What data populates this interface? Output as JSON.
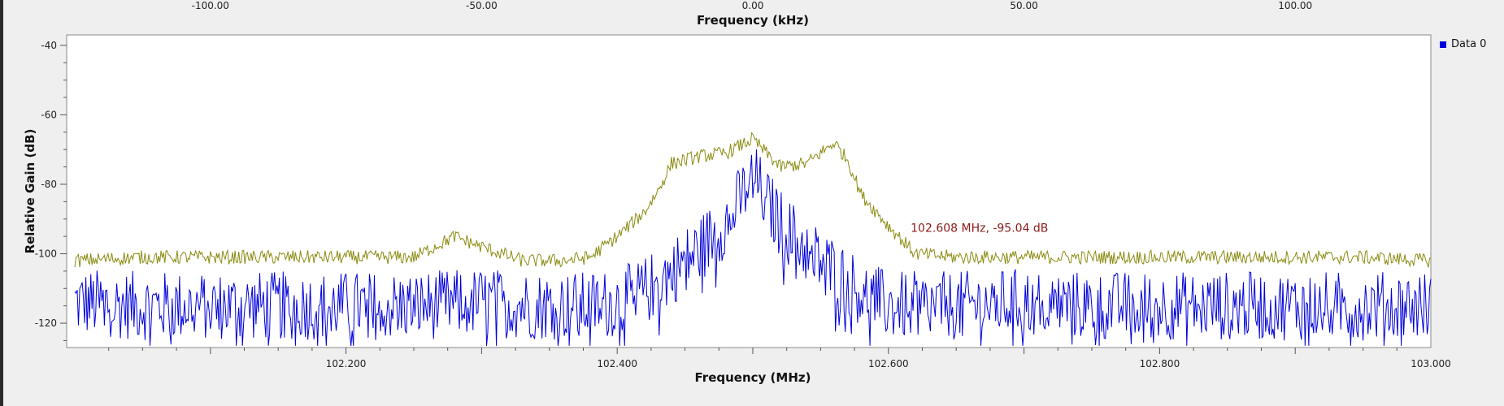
{
  "colors": {
    "background": "#efefef",
    "plot_bg": "#ffffff",
    "live_trace": "#0000dd",
    "max_hold_trace": "#8a8a10",
    "annotation": "#8b1a1a"
  },
  "legend": {
    "label": "Data 0"
  },
  "annotation": {
    "text": "102.608 MHz, -95.04 dB",
    "x": 102.608,
    "y": -95.04
  },
  "chart_data": {
    "type": "line",
    "xlabel": "Frequency (MHz)",
    "x2label": "Frequency (kHz)",
    "ylabel": "Relative Gain (dB)",
    "xlim": [
      102.0,
      103.0
    ],
    "x2lim": [
      -125.0,
      125.0
    ],
    "ylim": [
      -127,
      -37
    ],
    "xticks": [
      {
        "value": 102.2,
        "label": "102.200"
      },
      {
        "value": 102.4,
        "label": "102.400"
      },
      {
        "value": 102.6,
        "label": "102.600"
      },
      {
        "value": 102.8,
        "label": "102.800"
      },
      {
        "value": 103.0,
        "label": "103.000"
      }
    ],
    "x2ticks": [
      {
        "value": -100,
        "label": "-100.00"
      },
      {
        "value": -50,
        "label": "-50.00"
      },
      {
        "value": 0,
        "label": "0.00"
      },
      {
        "value": 50,
        "label": "50.00"
      },
      {
        "value": 100,
        "label": "100.00"
      }
    ],
    "yticks": [
      {
        "value": -40,
        "label": "-40"
      },
      {
        "value": -60,
        "label": "-60"
      },
      {
        "value": -80,
        "label": "-80"
      },
      {
        "value": -100,
        "label": "-100"
      },
      {
        "value": -120,
        "label": "-120"
      }
    ],
    "series": [
      {
        "name": "Data 0",
        "role": "live",
        "x": [
          102.0,
          102.05,
          102.1,
          102.15,
          102.2,
          102.25,
          102.3,
          102.35,
          102.38,
          102.4,
          102.42,
          102.44,
          102.46,
          102.47,
          102.48,
          102.49,
          102.5,
          102.51,
          102.52,
          102.53,
          102.54,
          102.56,
          102.58,
          102.6,
          102.65,
          102.7,
          102.75,
          102.8,
          102.85,
          102.9,
          102.95,
          103.0
        ],
        "y": [
          -115,
          -116,
          -116,
          -116,
          -116,
          -116,
          -115,
          -116,
          -116,
          -115,
          -112,
          -106,
          -100,
          -96,
          -92,
          -86,
          -78,
          -86,
          -92,
          -96,
          -100,
          -106,
          -112,
          -116,
          -116,
          -115,
          -116,
          -116,
          -116,
          -116,
          -116,
          -116
        ]
      },
      {
        "role": "max_hold",
        "x": [
          102.0,
          102.05,
          102.1,
          102.15,
          102.2,
          102.25,
          102.28,
          102.3,
          102.33,
          102.36,
          102.38,
          102.4,
          102.42,
          102.43,
          102.44,
          102.46,
          102.48,
          102.5,
          102.52,
          102.54,
          102.56,
          102.57,
          102.58,
          102.6,
          102.62,
          102.65,
          102.7,
          102.75,
          102.8,
          102.85,
          102.9,
          102.95,
          103.0
        ],
        "y": [
          -102,
          -101,
          -101,
          -101,
          -101,
          -101,
          -95,
          -98,
          -102,
          -102,
          -101,
          -95,
          -88,
          -82,
          -74,
          -72,
          -71,
          -67,
          -75,
          -74,
          -68,
          -73,
          -83,
          -92,
          -100,
          -101,
          -101,
          -101,
          -101,
          -101,
          -101,
          -101,
          -102
        ]
      }
    ]
  }
}
